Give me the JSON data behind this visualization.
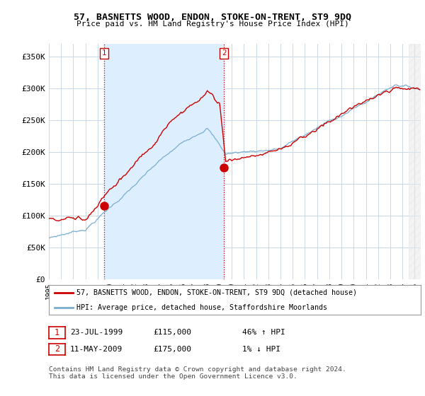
{
  "title": "57, BASNETTS WOOD, ENDON, STOKE-ON-TRENT, ST9 9DQ",
  "subtitle": "Price paid vs. HM Land Registry's House Price Index (HPI)",
  "ylabel_ticks": [
    "£0",
    "£50K",
    "£100K",
    "£150K",
    "£200K",
    "£250K",
    "£300K",
    "£350K"
  ],
  "ytick_values": [
    0,
    50000,
    100000,
    150000,
    200000,
    250000,
    300000,
    350000
  ],
  "ylim": [
    0,
    370000
  ],
  "xlim_start": 1995.0,
  "xlim_end": 2025.5,
  "red_color": "#cc0000",
  "blue_color": "#7aadcf",
  "shade_color": "#ddeeff",
  "ann1_x": 1999.55,
  "ann1_y": 115000,
  "ann2_x": 2009.36,
  "ann2_y": 175000,
  "legend_line1": "57, BASNETTS WOOD, ENDON, STOKE-ON-TRENT, ST9 9DQ (detached house)",
  "legend_line2": "HPI: Average price, detached house, Staffordshire Moorlands",
  "table_row1": [
    "1",
    "23-JUL-1999",
    "£115,000",
    "46% ↑ HPI"
  ],
  "table_row2": [
    "2",
    "11-MAY-2009",
    "£175,000",
    "1% ↓ HPI"
  ],
  "footer": "Contains HM Land Registry data © Crown copyright and database right 2024.\nThis data is licensed under the Open Government Licence v3.0.",
  "background_color": "#ffffff",
  "grid_color": "#c8d8e8"
}
